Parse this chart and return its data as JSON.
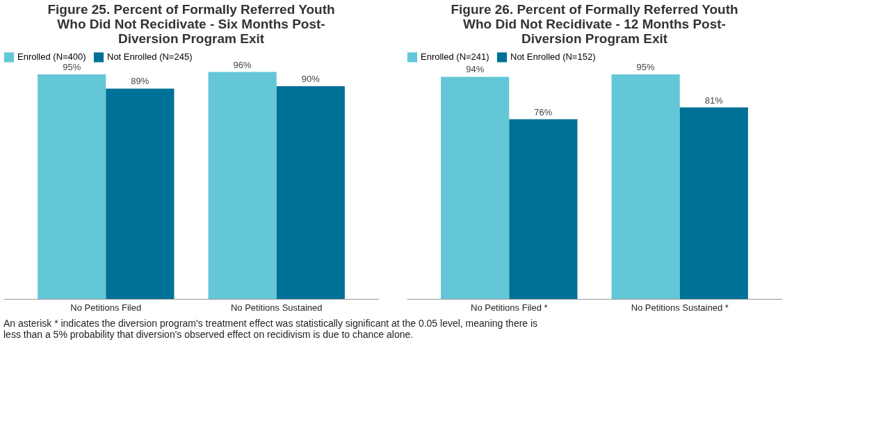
{
  "chart_data": [
    {
      "type": "bar",
      "title": "Figure 25. Percent of Formally Referred Youth\nWho Did Not Recidivate - Six Months Post-\nDiversion Program Exit",
      "categories": [
        "No Petitions Filed",
        "No Petitions Sustained"
      ],
      "series": [
        {
          "name": "Enrolled (N=400)",
          "color": "#63c7d7",
          "values": [
            95,
            96
          ],
          "value_labels": [
            "95%",
            "96%"
          ]
        },
        {
          "name": "Not Enrolled (N=245)",
          "color": "#007196",
          "values": [
            89,
            90
          ],
          "value_labels": [
            "89%",
            "90%"
          ]
        }
      ],
      "legend": "top left",
      "grid": false,
      "tick_labels": "x"
    },
    {
      "type": "bar",
      "title": "Figure 26. Percent of Formally Referred Youth\nWho Did Not Recidivate - 12 Months Post-\nDiversion Program Exit",
      "categories": [
        "No Petitions Filed *",
        "No Petitions Sustained *"
      ],
      "series": [
        {
          "name": "Enrolled (N=241)",
          "color": "#63c7d7",
          "values": [
            94,
            95
          ],
          "value_labels": [
            "94%",
            "95%"
          ]
        },
        {
          "name": "Not Enrolled (N=152)",
          "color": "#007196",
          "values": [
            76,
            81
          ],
          "value_labels": [
            "76%",
            "81%"
          ]
        }
      ],
      "legend": "top left",
      "grid": false,
      "tick_labels": "x",
      "annotations": [
        "An asterisk * indicates the diversion program's treatment effect was statistically significant at the 0.05 level, meaning there is less than a 5% probability that diversion's observed effect on recidivism is due to chance alone."
      ]
    }
  ]
}
